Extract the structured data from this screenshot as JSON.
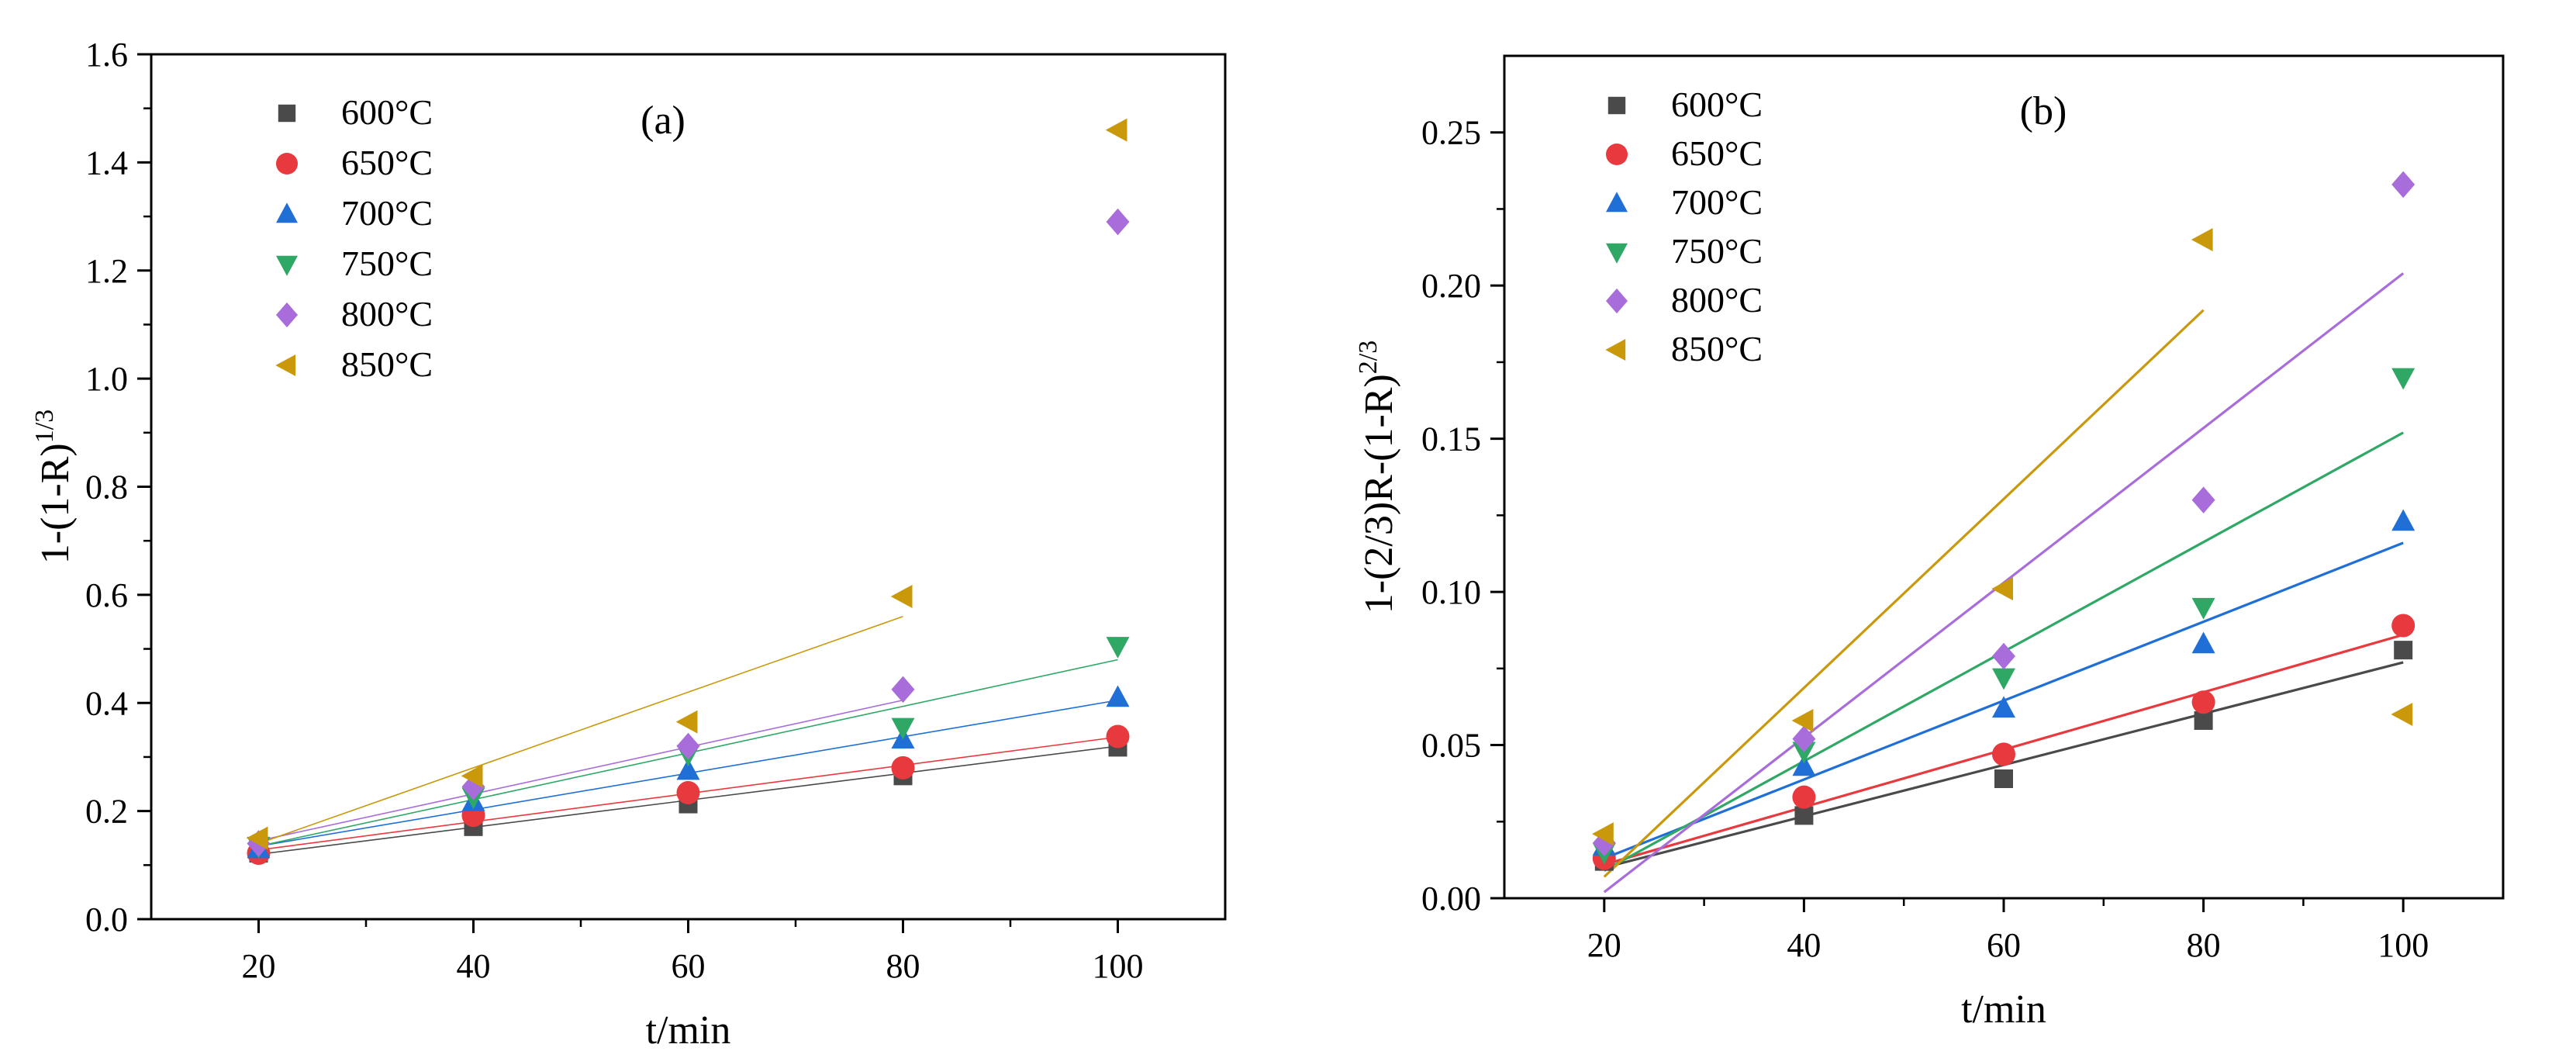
{
  "chart_data": [
    {
      "type": "scatter",
      "panel_label": "(a)",
      "xlabel": "t/min",
      "ylabel_base": "1-(1-R)",
      "ylabel_sup": "1/3",
      "xlim": [
        10,
        110
      ],
      "ylim": [
        0,
        1.6
      ],
      "x_ticks": [
        20,
        40,
        60,
        80,
        100
      ],
      "x_tick_labels": [
        "20",
        "40",
        "60",
        "80",
        "100"
      ],
      "y_ticks": [
        0,
        0.2,
        0.4,
        0.6,
        0.8,
        1.0,
        1.2,
        1.4,
        1.6
      ],
      "y_tick_labels": [
        "0.0",
        "0.2",
        "0.4",
        "0.6",
        "0.8",
        "1.0",
        "1.2",
        "1.4",
        "1.6"
      ],
      "grid": false,
      "legend_position": "top-left",
      "series": [
        {
          "name": "600°C",
          "marker": "square",
          "color": "#4a4a4a",
          "x": [
            20,
            40,
            60,
            80,
            100
          ],
          "y": [
            0.122,
            0.171,
            0.213,
            0.265,
            0.318
          ],
          "fit": {
            "x": [
              20,
              100
            ],
            "y": [
              0.12,
              0.32
            ]
          }
        },
        {
          "name": "650°C",
          "marker": "circle",
          "color": "#e8393f",
          "x": [
            20,
            40,
            60,
            80,
            100
          ],
          "y": [
            0.122,
            0.192,
            0.234,
            0.28,
            0.338
          ],
          "fit": {
            "x": [
              20,
              100
            ],
            "y": [
              0.128,
              0.337
            ]
          }
        },
        {
          "name": "700°C",
          "marker": "triangle-up",
          "color": "#1f6fd6",
          "x": [
            20,
            40,
            60,
            80,
            100
          ],
          "y": [
            0.13,
            0.217,
            0.275,
            0.333,
            0.41
          ],
          "fit": {
            "x": [
              20,
              100
            ],
            "y": [
              0.135,
              0.405
            ]
          }
        },
        {
          "name": "750°C",
          "marker": "triangle-down",
          "color": "#2fa866",
          "x": [
            20,
            40,
            60,
            80,
            100
          ],
          "y": [
            0.135,
            0.226,
            0.305,
            0.355,
            0.505
          ],
          "fit": {
            "x": [
              20,
              100
            ],
            "y": [
              0.135,
              0.48
            ]
          }
        },
        {
          "name": "800°C",
          "marker": "diamond",
          "color": "#a86ddb",
          "x": [
            20,
            40,
            60,
            80,
            100
          ],
          "y": [
            0.14,
            0.245,
            0.32,
            0.425,
            1.29
          ],
          "fit": {
            "x": [
              20,
              80
            ],
            "y": [
              0.145,
              0.405
            ]
          }
        },
        {
          "name": "850°C",
          "marker": "triangle-left",
          "color": "#c9980b",
          "x": [
            20,
            40,
            60,
            80,
            100
          ],
          "y": [
            0.15,
            0.265,
            0.365,
            0.597,
            1.46
          ],
          "fit": {
            "x": [
              20,
              80
            ],
            "y": [
              0.14,
              0.56
            ]
          }
        }
      ]
    },
    {
      "type": "scatter",
      "panel_label": "(b)",
      "xlabel": "t/min",
      "ylabel_base": "1-(2/3)R-(1-R)",
      "ylabel_sup": "2/3",
      "xlim": [
        10,
        110
      ],
      "ylim": [
        0,
        0.275
      ],
      "x_ticks": [
        20,
        40,
        60,
        80,
        100
      ],
      "x_tick_labels": [
        "20",
        "40",
        "60",
        "80",
        "100"
      ],
      "y_ticks": [
        0,
        0.05,
        0.1,
        0.15,
        0.2,
        0.25
      ],
      "y_tick_labels": [
        "0.00",
        "0.05",
        "0.10",
        "0.15",
        "0.20",
        "0.25"
      ],
      "grid": false,
      "legend_position": "top-left",
      "series": [
        {
          "name": "600°C",
          "marker": "square",
          "color": "#4a4a4a",
          "x": [
            20,
            40,
            60,
            80,
            100
          ],
          "y": [
            0.012,
            0.027,
            0.039,
            0.058,
            0.081
          ],
          "fit": {
            "x": [
              20,
              100
            ],
            "y": [
              0.01,
              0.077
            ]
          }
        },
        {
          "name": "650°C",
          "marker": "circle",
          "color": "#e8393f",
          "x": [
            20,
            40,
            60,
            80,
            100
          ],
          "y": [
            0.013,
            0.033,
            0.047,
            0.064,
            0.089
          ],
          "fit": {
            "x": [
              20,
              100
            ],
            "y": [
              0.011,
              0.086
            ]
          }
        },
        {
          "name": "700°C",
          "marker": "triangle-up",
          "color": "#1f6fd6",
          "x": [
            20,
            40,
            60,
            80,
            100
          ],
          "y": [
            0.017,
            0.043,
            0.062,
            0.083,
            0.123
          ],
          "fit": {
            "x": [
              20,
              100
            ],
            "y": [
              0.013,
              0.116
            ]
          }
        },
        {
          "name": "750°C",
          "marker": "triangle-down",
          "color": "#2fa866",
          "x": [
            20,
            40,
            60,
            80,
            100
          ],
          "y": [
            0.015,
            0.048,
            0.072,
            0.095,
            0.17
          ],
          "fit": {
            "x": [
              20,
              100
            ],
            "y": [
              0.009,
              0.152
            ]
          }
        },
        {
          "name": "800°C",
          "marker": "diamond",
          "color": "#a86ddb",
          "x": [
            20,
            40,
            60,
            80,
            100
          ],
          "y": [
            0.018,
            0.052,
            0.079,
            0.13,
            0.233
          ],
          "fit": {
            "x": [
              20,
              100
            ],
            "y": [
              0.002,
              0.204
            ]
          }
        },
        {
          "name": "850°C",
          "marker": "triangle-left",
          "color": "#c9980b",
          "x": [
            20,
            40,
            60,
            80,
            100
          ],
          "y": [
            0.021,
            0.058,
            0.101,
            0.215,
            0.06
          ],
          "fit": {
            "x": [
              20,
              80
            ],
            "y": [
              0.007,
              0.192
            ]
          }
        }
      ]
    }
  ]
}
